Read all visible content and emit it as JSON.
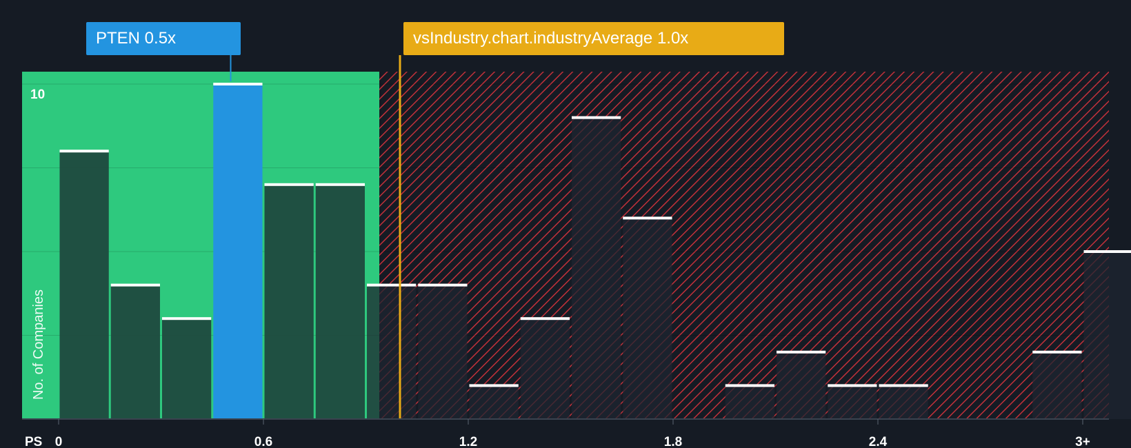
{
  "colors": {
    "background": "#151b24",
    "fair_zone": "#2ec97e",
    "over_zone": "#c2313a",
    "company_bar": "#2394e0",
    "industry_line": "#e8ab16",
    "bar_cap": "#ffffff",
    "axis_text": "#ffffff"
  },
  "callouts": {
    "company": "PTEN 0.5x",
    "industry": "vsIndustry.chart.industryAverage 1.0x"
  },
  "chart_data": {
    "type": "bar",
    "xlabel": "PS",
    "ylabel": "No. of Companies",
    "x_ticks": [
      "0",
      "0.6",
      "1.2",
      "1.8",
      "2.4",
      "3+"
    ],
    "y_ticks": [
      "10"
    ],
    "ylim": [
      0,
      10.3
    ],
    "bin_width": 0.15,
    "bins_start": [
      0,
      0.15,
      0.3,
      0.45,
      0.6,
      0.75,
      0.9,
      1.05,
      1.2,
      1.35,
      1.5,
      1.65,
      1.8,
      1.95,
      2.1,
      2.25,
      2.4,
      2.55,
      2.7,
      2.85,
      3.0
    ],
    "values": [
      8,
      4,
      3,
      10,
      7,
      7,
      4,
      4,
      1,
      3,
      9,
      6,
      0,
      1,
      2,
      1,
      1,
      0,
      0,
      2,
      5
    ],
    "company": {
      "name": "PTEN",
      "value": 0.5
    },
    "industry_average": 1.0,
    "grid": true
  }
}
